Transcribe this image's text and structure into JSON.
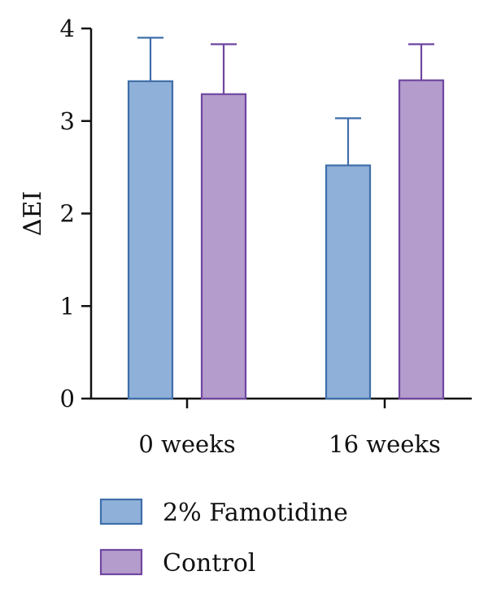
{
  "chart_data": {
    "type": "bar",
    "title": "",
    "xlabel": "",
    "ylabel": "ΔEI",
    "ylim": [
      0,
      4
    ],
    "yticks": [
      0,
      1,
      2,
      3,
      4
    ],
    "categories": [
      "0 weeks",
      "16 weeks"
    ],
    "series": [
      {
        "name": "2% Famotidine",
        "values": [
          3.43,
          2.52
        ],
        "error_upper": [
          3.9,
          3.03
        ],
        "fill": "#8fb0d8",
        "stroke": "#3f6eaa"
      },
      {
        "name": "Control",
        "values": [
          3.29,
          3.44
        ],
        "error_upper": [
          3.83,
          3.83
        ],
        "fill": "#b49ccd",
        "stroke": "#6f47a0"
      }
    ],
    "legend_position": "bottom",
    "grid": false
  }
}
